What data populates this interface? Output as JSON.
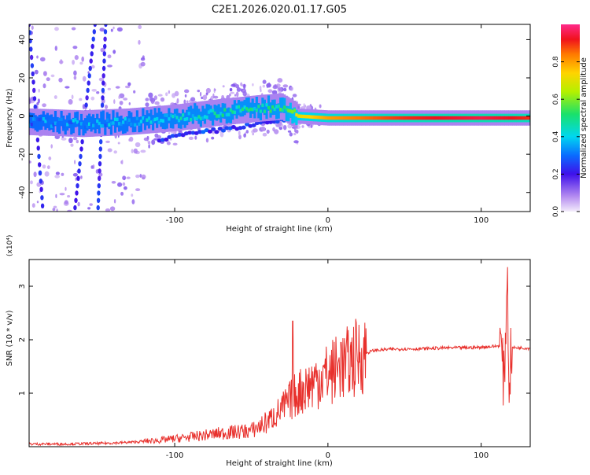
{
  "title": "C2E1.2026.020.01.17.G05",
  "chart_data": [
    {
      "type": "heatmap",
      "xlabel": "Height of straight line (km)",
      "ylabel": "Frequency (Hz)",
      "xlim": [
        -195,
        132
      ],
      "ylim": [
        -50,
        48
      ],
      "xticks": [
        -100,
        0,
        100
      ],
      "yticks": [
        -40,
        -20,
        0,
        20,
        40
      ],
      "colorbar": {
        "label": "Normalized spectral amplitude",
        "range": [
          0,
          1
        ],
        "ticks": [
          0.0,
          0.2,
          0.4,
          0.6,
          0.8
        ]
      },
      "ridge": {
        "x": [
          -195,
          -160,
          -130,
          -100,
          -70,
          -45,
          -30,
          -20,
          0,
          50,
          100,
          132
        ],
        "freq": [
          -3,
          -4,
          -3,
          -1,
          2,
          4,
          5,
          0,
          -1,
          -1,
          -1,
          -1
        ],
        "amplitude": [
          0.3,
          0.35,
          0.35,
          0.4,
          0.45,
          0.45,
          0.5,
          0.7,
          0.8,
          0.9,
          0.95,
          0.9
        ]
      }
    },
    {
      "type": "line",
      "xlabel": "Height of straight line (km)",
      "ylabel": "SNR (10 * v/v)",
      "y_multiplier": "(x10⁴)",
      "xlim": [
        -195,
        132
      ],
      "ylim": [
        0,
        3.5
      ],
      "xticks": [
        -100,
        0,
        100
      ],
      "yticks": [
        1,
        2,
        3
      ],
      "series": [
        {
          "color": "#e8302c",
          "x": [
            -195,
            -170,
            -150,
            -130,
            -110,
            -90,
            -70,
            -50,
            -40,
            -30,
            -25,
            -20,
            -15,
            -10,
            -5,
            0,
            5,
            10,
            15,
            20,
            25,
            30,
            40,
            50,
            60,
            70,
            80,
            90,
            100,
            110,
            113,
            115,
            117,
            118,
            120,
            125,
            132
          ],
          "y": [
            0.05,
            0.05,
            0.06,
            0.08,
            0.12,
            0.18,
            0.25,
            0.3,
            0.45,
            0.7,
            0.85,
            1.0,
            1.1,
            1.2,
            1.3,
            1.35,
            1.45,
            1.5,
            1.6,
            1.7,
            1.75,
            1.8,
            1.82,
            1.83,
            1.83,
            1.84,
            1.85,
            1.85,
            1.86,
            1.88,
            1.9,
            1.1,
            3.4,
            1.2,
            1.85,
            1.85,
            1.84
          ]
        }
      ]
    }
  ]
}
